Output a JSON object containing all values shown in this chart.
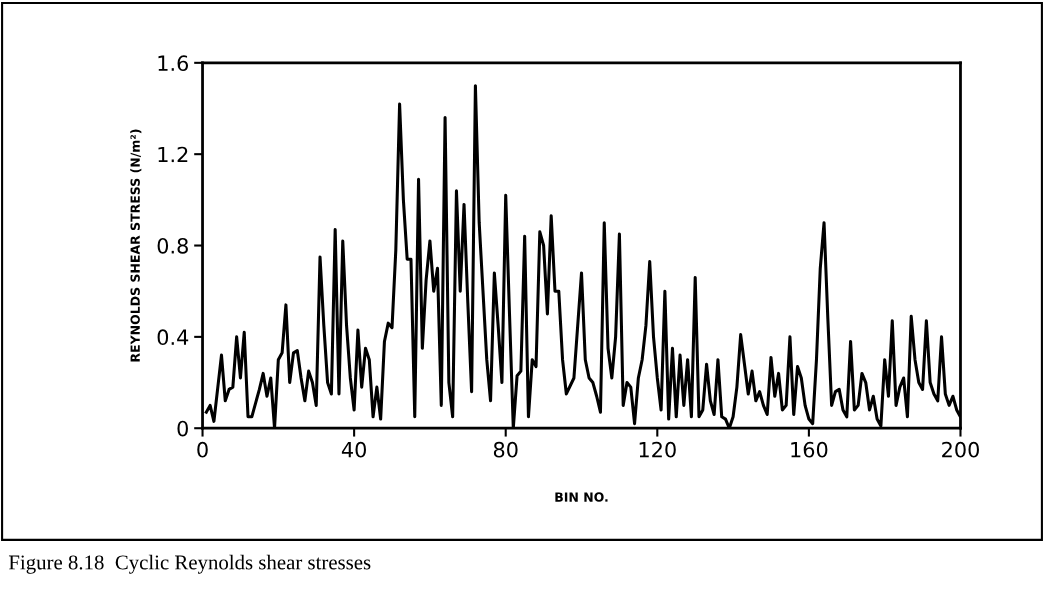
{
  "chart_data": {
    "type": "line",
    "xlabel": "BIN NO.",
    "ylabel": "REYNOLDS SHEAR STRESS (N/m²)",
    "annotations": [
      "Figure 8.18  Cyclic Reynolds shear stresses"
    ],
    "xlim": [
      0,
      200
    ],
    "xticks": [
      0,
      40,
      80,
      120,
      160,
      200
    ],
    "ylim": [
      0,
      1.6
    ],
    "yticks": [
      0,
      0.4,
      0.8,
      1.2,
      1.6
    ],
    "grid": false,
    "legend": false,
    "marker": "none",
    "line_style": "solid",
    "series": [
      {
        "color": "#000000",
        "x": [
          1,
          2,
          3,
          5,
          6,
          7,
          8,
          9,
          10,
          11,
          12,
          13,
          15,
          16,
          17,
          18,
          19,
          20,
          21,
          22,
          23,
          24,
          25,
          26,
          27,
          28,
          29,
          30,
          31,
          32,
          33,
          34,
          35,
          36,
          37,
          38,
          39,
          40,
          41,
          42,
          43,
          44,
          45,
          46,
          47,
          48,
          49,
          50,
          51,
          52,
          53,
          54,
          55,
          56,
          57,
          58,
          59,
          60,
          61,
          62,
          63,
          64,
          65,
          66,
          67,
          68,
          69,
          70,
          71,
          72,
          73,
          74,
          75,
          76,
          77,
          78,
          79,
          80,
          81,
          82,
          83,
          84,
          85,
          86,
          87,
          88,
          89,
          90,
          91,
          92,
          93,
          94,
          95,
          96,
          98,
          100,
          101,
          102,
          103,
          104,
          105,
          106,
          107,
          108,
          109,
          110,
          111,
          112,
          113,
          114,
          115,
          116,
          117,
          118,
          119,
          120,
          121,
          122,
          123,
          124,
          125,
          126,
          127,
          128,
          129,
          130,
          131,
          132,
          133,
          134,
          135,
          136,
          137,
          138,
          139,
          140,
          141,
          142,
          143,
          144,
          145,
          146,
          147,
          148,
          149,
          150,
          151,
          152,
          153,
          154,
          155,
          156,
          157,
          158,
          159,
          160,
          161,
          162,
          163,
          164,
          165,
          166,
          167,
          168,
          169,
          170,
          171,
          172,
          173,
          174,
          175,
          176,
          177,
          178,
          179,
          180,
          181,
          182,
          183,
          184,
          185,
          186,
          187,
          188,
          189,
          190,
          191,
          192,
          193,
          194,
          195,
          196,
          197,
          198,
          199,
          200
        ],
        "values": [
          0.07,
          0.1,
          0.03,
          0.32,
          0.12,
          0.17,
          0.18,
          0.4,
          0.22,
          0.42,
          0.05,
          0.05,
          0.17,
          0.24,
          0.14,
          0.22,
          0.0,
          0.3,
          0.33,
          0.54,
          0.2,
          0.33,
          0.34,
          0.22,
          0.12,
          0.25,
          0.2,
          0.1,
          0.75,
          0.45,
          0.2,
          0.15,
          0.87,
          0.15,
          0.82,
          0.45,
          0.22,
          0.08,
          0.43,
          0.18,
          0.35,
          0.3,
          0.05,
          0.18,
          0.04,
          0.38,
          0.46,
          0.44,
          0.78,
          1.42,
          1.0,
          0.74,
          0.74,
          0.05,
          1.09,
          0.35,
          0.65,
          0.82,
          0.6,
          0.7,
          0.1,
          1.36,
          0.2,
          0.05,
          1.04,
          0.6,
          0.98,
          0.55,
          0.16,
          1.5,
          0.9,
          0.6,
          0.3,
          0.12,
          0.68,
          0.45,
          0.2,
          1.02,
          0.5,
          0.0,
          0.23,
          0.25,
          0.84,
          0.05,
          0.3,
          0.27,
          0.86,
          0.8,
          0.5,
          0.93,
          0.6,
          0.6,
          0.3,
          0.15,
          0.22,
          0.68,
          0.3,
          0.22,
          0.2,
          0.14,
          0.07,
          0.9,
          0.35,
          0.22,
          0.4,
          0.85,
          0.1,
          0.2,
          0.18,
          0.02,
          0.22,
          0.3,
          0.45,
          0.73,
          0.4,
          0.22,
          0.08,
          0.6,
          0.04,
          0.35,
          0.05,
          0.32,
          0.1,
          0.3,
          0.05,
          0.66,
          0.05,
          0.08,
          0.28,
          0.12,
          0.06,
          0.3,
          0.05,
          0.04,
          0.0,
          0.05,
          0.18,
          0.41,
          0.28,
          0.15,
          0.25,
          0.12,
          0.16,
          0.1,
          0.06,
          0.31,
          0.14,
          0.24,
          0.08,
          0.1,
          0.4,
          0.06,
          0.27,
          0.22,
          0.1,
          0.04,
          0.02,
          0.3,
          0.7,
          0.9,
          0.48,
          0.1,
          0.16,
          0.17,
          0.08,
          0.05,
          0.38,
          0.08,
          0.1,
          0.24,
          0.2,
          0.08,
          0.14,
          0.04,
          0.01,
          0.3,
          0.14,
          0.47,
          0.1,
          0.18,
          0.22,
          0.05,
          0.49,
          0.3,
          0.2,
          0.17,
          0.47,
          0.2,
          0.15,
          0.12,
          0.4,
          0.15,
          0.1,
          0.14,
          0.08,
          0.05
        ]
      }
    ]
  }
}
